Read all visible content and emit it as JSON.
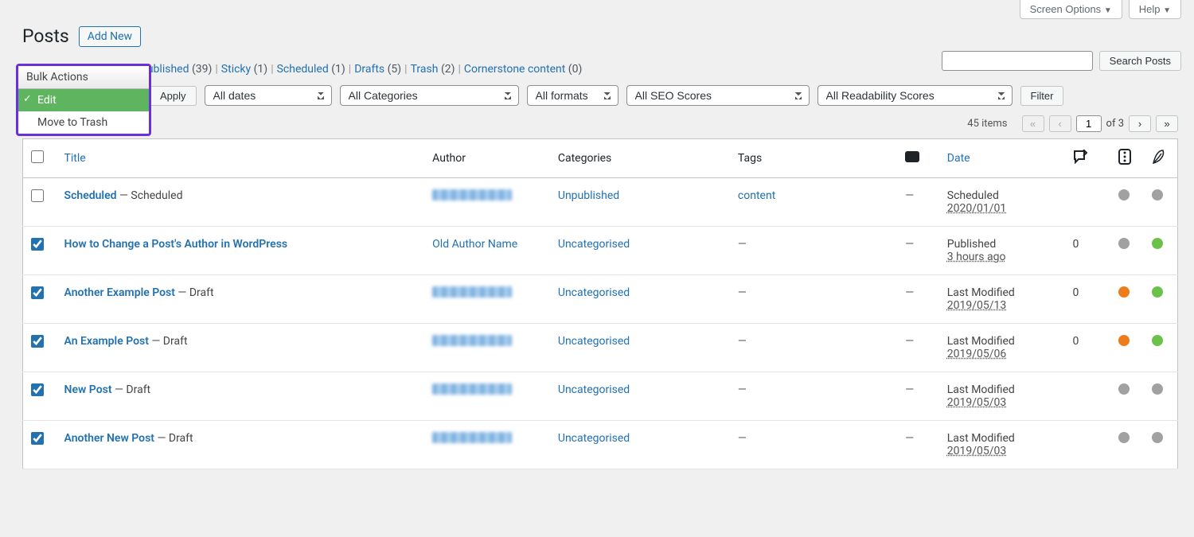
{
  "screen_tabs": {
    "screen_options": "Screen Options",
    "help": "Help"
  },
  "page": {
    "title": "Posts",
    "add_new": "Add New"
  },
  "bulk_dropdown": {
    "header": "Bulk Actions",
    "edit": "Edit",
    "trash": "Move to Trash"
  },
  "subsubsub": [
    {
      "label": "Published",
      "count": "(39)"
    },
    {
      "label": "Sticky",
      "count": "(1)"
    },
    {
      "label": "Scheduled",
      "count": "(1)"
    },
    {
      "label": "Drafts",
      "count": "(5)"
    },
    {
      "label": "Trash",
      "count": "(2)"
    },
    {
      "label": "Cornerstone content",
      "count": "(0)"
    }
  ],
  "toolbar": {
    "apply": "Apply",
    "dates": "All dates",
    "categories": "All Categories",
    "formats": "All formats",
    "seo": "All SEO Scores",
    "readability": "All Readability Scores",
    "filter": "Filter"
  },
  "search": {
    "button": "Search Posts"
  },
  "pagination": {
    "items": "45 items",
    "current": "1",
    "of": "of 3"
  },
  "columns": {
    "title": "Title",
    "author": "Author",
    "categories": "Categories",
    "tags": "Tags",
    "date": "Date"
  },
  "rows": [
    {
      "checked": false,
      "title": "Scheduled",
      "state": "— Scheduled",
      "author_blurred": true,
      "author": "",
      "categories": "Unpublished",
      "tags": "content",
      "comments": "—",
      "date_status": "Scheduled",
      "date_sub": "2020/01/01",
      "incoming": "",
      "seo_color": "#a1a1a1",
      "read_color": "#a1a1a1"
    },
    {
      "checked": true,
      "title": "How to Change a Post's Author in WordPress",
      "state": "",
      "author_blurred": false,
      "author": "Old Author Name",
      "categories": "Uncategorised",
      "tags": "—",
      "comments": "—",
      "date_status": "Published",
      "date_sub": "3 hours ago",
      "incoming": "0",
      "seo_color": "#a1a1a1",
      "read_color": "#6bc24a"
    },
    {
      "checked": true,
      "title": "Another Example Post",
      "state": "— Draft",
      "author_blurred": true,
      "author": "",
      "categories": "Uncategorised",
      "tags": "—",
      "comments": "—",
      "date_status": "Last Modified",
      "date_sub": "2019/05/13",
      "incoming": "0",
      "seo_color": "#ee7c1b",
      "read_color": "#6bc24a"
    },
    {
      "checked": true,
      "title": "An Example Post",
      "state": "— Draft",
      "author_blurred": true,
      "author": "",
      "categories": "Uncategorised",
      "tags": "—",
      "comments": "—",
      "date_status": "Last Modified",
      "date_sub": "2019/05/06",
      "incoming": "0",
      "seo_color": "#ee7c1b",
      "read_color": "#6bc24a"
    },
    {
      "checked": true,
      "title": "New Post",
      "state": "— Draft",
      "author_blurred": true,
      "author": "",
      "categories": "Uncategorised",
      "tags": "—",
      "comments": "—",
      "date_status": "Last Modified",
      "date_sub": "2019/05/03",
      "incoming": "",
      "seo_color": "#a1a1a1",
      "read_color": "#a1a1a1"
    },
    {
      "checked": true,
      "title": "Another New Post",
      "state": "— Draft",
      "author_blurred": true,
      "author": "",
      "categories": "Uncategorised",
      "tags": "—",
      "comments": "—",
      "date_status": "Last Modified",
      "date_sub": "2019/05/03",
      "incoming": "",
      "seo_color": "#a1a1a1",
      "read_color": "#a1a1a1"
    }
  ],
  "colors": {
    "link": "#2271b1",
    "highlight_border": "#6a30d9",
    "selected_bg": "#5fb55f",
    "gray_dot": "#a1a1a1",
    "green_dot": "#6bc24a",
    "orange_dot": "#ee7c1b"
  }
}
